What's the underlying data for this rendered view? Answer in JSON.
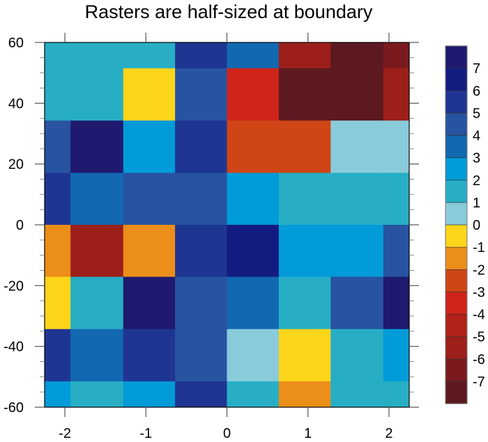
{
  "chart_data": {
    "type": "heatmap",
    "title": "Rasters are half-sized at boundary",
    "xlabel": "",
    "ylabel": "",
    "xlim": [
      -2.25,
      2.25
    ],
    "ylim": [
      -60,
      60
    ],
    "x_ticks": [
      -2,
      -1,
      0,
      1,
      2
    ],
    "x_tick_labels": [
      "-2",
      "-1",
      "0",
      "1",
      "2"
    ],
    "y_ticks": [
      -60,
      -40,
      -20,
      0,
      20,
      40,
      60
    ],
    "y_tick_labels": [
      "-60",
      "-40",
      "-20",
      "0",
      "20",
      "40",
      "60"
    ],
    "x_centers": [
      -2,
      -1.5,
      -1,
      -0.5,
      0,
      0.5,
      1,
      1.5,
      2
    ],
    "y_centers": [
      60,
      45,
      30,
      15,
      0,
      -15,
      -30,
      -45,
      -60
    ],
    "colorbar": {
      "levels": [
        -7,
        -6,
        -5,
        -4,
        -3,
        -2,
        -1,
        0,
        1,
        2,
        3,
        4,
        5,
        6,
        7
      ],
      "labels": [
        "-7",
        "-6",
        "-5",
        "-4",
        "-3",
        "-2",
        "-1",
        "0",
        "1",
        "2",
        "3",
        "4",
        "5",
        "6",
        "7"
      ],
      "colors": [
        "#5c1a20",
        "#7a1a1e",
        "#9c1f1a",
        "#b0221a",
        "#d0241a",
        "#cf4516",
        "#eb8e1a",
        "#fdd51a",
        "#89cbdb",
        "#27aec5",
        "#009bd8",
        "#1368b2",
        "#2853a0",
        "#1f3592",
        "#141b80",
        "#1f1a6f"
      ]
    },
    "grid_level_index": [
      [
        9,
        9,
        9,
        13,
        11,
        2,
        0,
        1
      ],
      [
        9,
        9,
        7,
        12,
        4,
        0,
        0,
        2
      ],
      [
        12,
        15,
        10,
        13,
        5,
        5,
        8,
        8
      ],
      [
        13,
        11,
        12,
        12,
        10,
        9,
        9,
        9
      ],
      [
        6,
        2,
        6,
        13,
        14,
        10,
        10,
        12
      ],
      [
        7,
        9,
        15,
        12,
        11,
        9,
        12,
        15
      ],
      [
        13,
        11,
        13,
        12,
        8,
        7,
        9,
        10
      ],
      [
        10,
        9,
        10,
        13,
        9,
        6,
        9,
        9
      ]
    ],
    "grid_note_rows": "top row first; each row spans between consecutive y boundaries",
    "grid": false,
    "legend": "right"
  }
}
